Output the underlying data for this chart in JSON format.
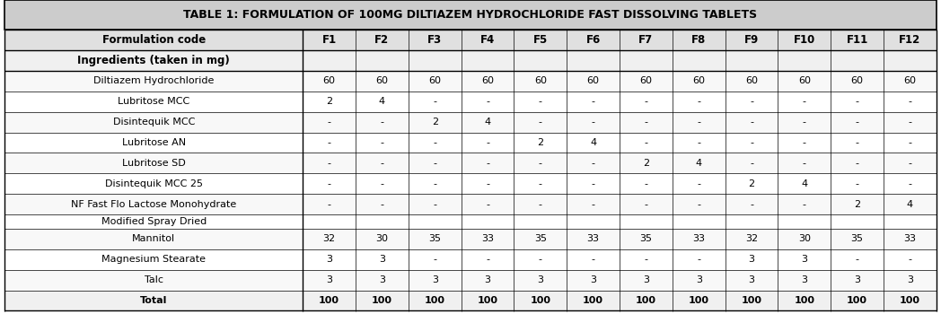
{
  "title": "TABLE 1: FORMULATION OF 100MG DILTIAZEM HYDROCHLORIDE FAST DISSOLVING TABLETS",
  "table_rows": [
    [
      "Formulation code",
      "F1",
      "F2",
      "F3",
      "F4",
      "F5",
      "F6",
      "F7",
      "F8",
      "F9",
      "F10",
      "F11",
      "F12"
    ],
    [
      "Ingredients (taken in mg)",
      "",
      "",
      "",
      "",
      "",
      "",
      "",
      "",
      "",
      "",
      "",
      ""
    ],
    [
      "Diltiazem Hydrochloride",
      "60",
      "60",
      "60",
      "60",
      "60",
      "60",
      "60",
      "60",
      "60",
      "60",
      "60",
      "60"
    ],
    [
      "Lubritose MCC",
      "2",
      "4",
      "-",
      "-",
      "-",
      "-",
      "-",
      "-",
      "-",
      "-",
      "-",
      "-"
    ],
    [
      "Disintequik MCC",
      "-",
      "-",
      "2",
      "4",
      "-",
      "-",
      "-",
      "-",
      "-",
      "-",
      "-",
      "-"
    ],
    [
      "Lubritose AN",
      "-",
      "-",
      "-",
      "-",
      "2",
      "4",
      "-",
      "-",
      "-",
      "-",
      "-",
      "-"
    ],
    [
      "Lubritose SD",
      "-",
      "-",
      "-",
      "-",
      "-",
      "-",
      "2",
      "4",
      "-",
      "-",
      "-",
      "-"
    ],
    [
      "Disintequik MCC 25",
      "-",
      "-",
      "-",
      "-",
      "-",
      "-",
      "-",
      "-",
      "2",
      "4",
      "-",
      "-"
    ],
    [
      "NF Fast Flo Lactose Monohydrate",
      "-",
      "-",
      "-",
      "-",
      "-",
      "-",
      "-",
      "-",
      "-",
      "-",
      "2",
      "4"
    ],
    [
      "Modified Spray Dried",
      "",
      "",
      "",
      "",
      "",
      "",
      "",
      "",
      "",
      "",
      "",
      ""
    ],
    [
      "Mannitol",
      "32",
      "30",
      "35",
      "33",
      "35",
      "33",
      "35",
      "33",
      "32",
      "30",
      "35",
      "33"
    ],
    [
      "Magnesium Stearate",
      "3",
      "3",
      "-",
      "-",
      "-",
      "-",
      "-",
      "-",
      "3",
      "3",
      "-",
      "-"
    ],
    [
      "Talc",
      "3",
      "3",
      "3",
      "3",
      "3",
      "3",
      "3",
      "3",
      "3",
      "3",
      "3",
      "3"
    ],
    [
      "Total",
      "100",
      "100",
      "100",
      "100",
      "100",
      "100",
      "100",
      "100",
      "100",
      "100",
      "100",
      "100"
    ]
  ],
  "row_styles": [
    {
      "bold": true,
      "bg": "#e0e0e0",
      "border_bottom_thick": true
    },
    {
      "bold": true,
      "bg": "#f0f0f0",
      "border_bottom_thick": true
    },
    {
      "bold": false,
      "bg": "#f8f8f8"
    },
    {
      "bold": false,
      "bg": "#ffffff"
    },
    {
      "bold": false,
      "bg": "#f8f8f8"
    },
    {
      "bold": false,
      "bg": "#ffffff"
    },
    {
      "bold": false,
      "bg": "#f8f8f8"
    },
    {
      "bold": false,
      "bg": "#ffffff"
    },
    {
      "bold": false,
      "bg": "#f8f8f8"
    },
    {
      "bold": false,
      "bg": "#ffffff"
    },
    {
      "bold": false,
      "bg": "#f8f8f8"
    },
    {
      "bold": false,
      "bg": "#ffffff"
    },
    {
      "bold": false,
      "bg": "#f8f8f8"
    },
    {
      "bold": true,
      "bg": "#f0f0f0",
      "border_top_thick": true
    }
  ],
  "title_bg": "#b0b0b0",
  "title_fontsize": 9.0,
  "header_fontsize": 8.5,
  "cell_fontsize": 8.0,
  "fig_width": 10.48,
  "fig_height": 3.5,
  "dpi": 100
}
